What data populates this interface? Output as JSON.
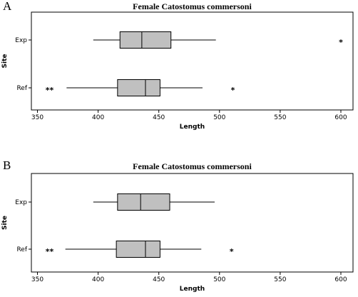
{
  "chart_data": [
    {
      "panel": "A",
      "type": "boxplot",
      "orientation": "horizontal",
      "title": "Female Catostomus commersoni",
      "xlabel": "Length",
      "ylabel": "Site",
      "xlim": [
        345,
        610
      ],
      "xticks": [
        350,
        400,
        450,
        500,
        550,
        600
      ],
      "categories": [
        "Exp",
        "Ref"
      ],
      "boxes": [
        {
          "name": "Exp",
          "whisker_low": 396,
          "q1": 418,
          "median": 436,
          "q3": 460,
          "whisker_high": 497,
          "outliers": [
            {
              "x": 600,
              "label": "*"
            }
          ]
        },
        {
          "name": "Ref",
          "whisker_low": 374,
          "q1": 416,
          "median": 439,
          "q3": 451,
          "whisker_high": 486,
          "outliers": [
            {
              "x": 360,
              "label": "**"
            },
            {
              "x": 511,
              "label": "*"
            }
          ]
        }
      ],
      "grid": false
    },
    {
      "panel": "B",
      "type": "boxplot",
      "orientation": "horizontal",
      "title": "Female Catostomus commersoni",
      "xlabel": "Length",
      "ylabel": "Site",
      "xlim": [
        345,
        610
      ],
      "xticks": [
        350,
        400,
        450,
        500,
        550,
        600
      ],
      "categories": [
        "Exp",
        "Ref"
      ],
      "boxes": [
        {
          "name": "Exp",
          "whisker_low": 396,
          "q1": 416,
          "median": 435,
          "q3": 459,
          "whisker_high": 496,
          "outliers": []
        },
        {
          "name": "Ref",
          "whisker_low": 373,
          "q1": 415,
          "median": 439,
          "q3": 451,
          "whisker_high": 485,
          "outliers": [
            {
              "x": 360,
              "label": "**"
            },
            {
              "x": 510,
              "label": "*"
            }
          ]
        }
      ],
      "grid": false
    }
  ]
}
